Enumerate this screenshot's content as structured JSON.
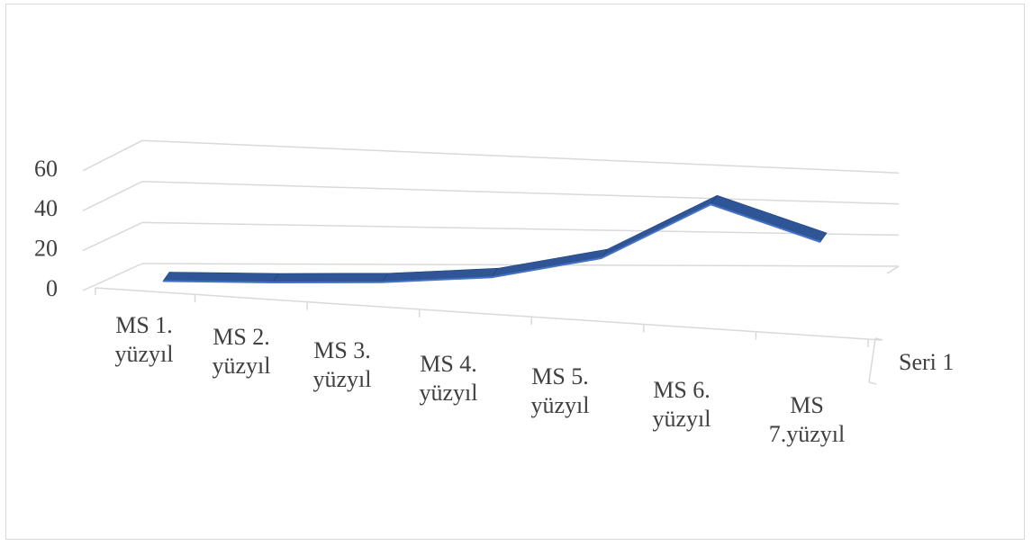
{
  "chart_data": {
    "type": "line",
    "style": "3d",
    "categories": [
      [
        "MS 1.",
        "yüzyıl"
      ],
      [
        "MS 2.",
        "yüzyıl"
      ],
      [
        "MS 3.",
        "yüzyıl"
      ],
      [
        "MS 4.",
        "yüzyıl"
      ],
      [
        "MS 5.",
        "yüzyıl"
      ],
      [
        "MS 6.",
        "yüzyıl"
      ],
      [
        "MS",
        "7.yüzyıl"
      ]
    ],
    "series": [
      {
        "name": "Seri 1",
        "values": [
          2,
          0,
          -1,
          1,
          12,
          45,
          20
        ],
        "color": "#2f5597"
      }
    ],
    "yticks": [
      "0",
      "20",
      "40",
      "60"
    ],
    "ylim": [
      0,
      60
    ],
    "grid": true,
    "depth_axis_label": "Seri 1",
    "colors": {
      "line": "#2f5597",
      "line_top": "#254a8a",
      "grid": "#d9d9d9",
      "text": "#404040"
    }
  }
}
